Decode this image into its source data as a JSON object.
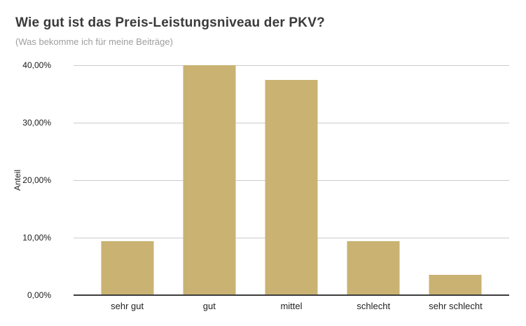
{
  "header": {
    "title": "Wie gut ist das Preis-Leistungsniveau der PKV?",
    "subtitle": "(Was bekomme ich für meine Beiträge)"
  },
  "chart_data": {
    "type": "bar",
    "title": "Wie gut ist das Preis-Leistungsniveau der PKV?",
    "subtitle": "(Was bekomme ich für meine Beiträge)",
    "categories": [
      "sehr gut",
      "gut",
      "mittel",
      "schlecht",
      "sehr schlecht"
    ],
    "values": [
      9.4,
      40.0,
      37.5,
      9.4,
      3.5
    ],
    "xlabel": "",
    "ylabel": "Anteil",
    "ylim": [
      0,
      40
    ],
    "yticks": [
      {
        "value": 0,
        "label": "0,00%"
      },
      {
        "value": 10,
        "label": "10,00%"
      },
      {
        "value": 20,
        "label": "20,00%"
      },
      {
        "value": 30,
        "label": "30,00%"
      },
      {
        "value": 40,
        "label": "40,00%"
      }
    ],
    "grid": true,
    "legend_position": "none",
    "bar_color": "#C9B272",
    "gridline_color": "#cccccc",
    "axis_line_color": "#3d3d3d"
  }
}
